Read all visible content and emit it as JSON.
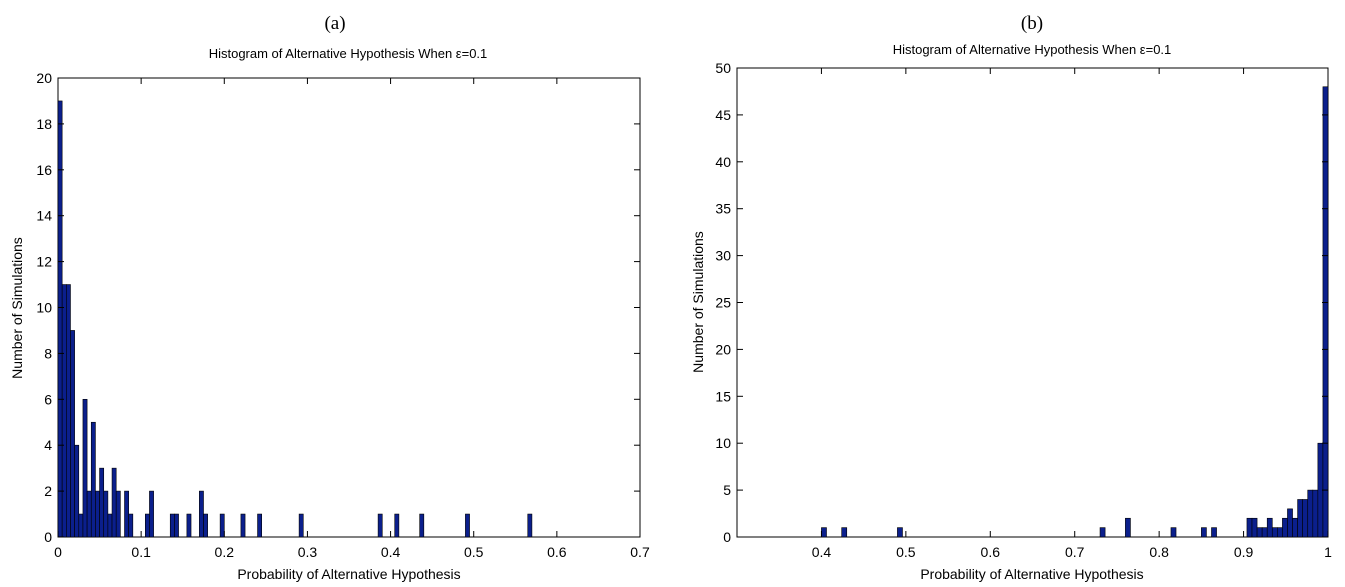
{
  "colors": {
    "bar": "#0b1f8c",
    "axis": "#000000",
    "background": "#ffffff"
  },
  "chart_data": [
    {
      "type": "bar",
      "panel_label": "(a)",
      "title": "Histogram of Alternative Hypothesis When ε=0.1",
      "xlabel": "Probability of Alternative Hypothesis",
      "ylabel": "Number of Simulations",
      "xlim": [
        0,
        0.7
      ],
      "ylim": [
        0,
        20
      ],
      "xticks": [
        "0",
        "0.1",
        "0.2",
        "0.3",
        "0.4",
        "0.5",
        "0.6",
        "0.7"
      ],
      "yticks": [
        "0",
        "2",
        "4",
        "6",
        "8",
        "10",
        "12",
        "14",
        "16",
        "18",
        "20"
      ],
      "bin_width": 0.005,
      "bins": [
        {
          "x": 0.0025,
          "value": 19
        },
        {
          "x": 0.0075,
          "value": 11
        },
        {
          "x": 0.0125,
          "value": 11
        },
        {
          "x": 0.0175,
          "value": 9
        },
        {
          "x": 0.0225,
          "value": 4
        },
        {
          "x": 0.0275,
          "value": 1
        },
        {
          "x": 0.0325,
          "value": 6
        },
        {
          "x": 0.0375,
          "value": 2
        },
        {
          "x": 0.0425,
          "value": 5
        },
        {
          "x": 0.0475,
          "value": 2
        },
        {
          "x": 0.0525,
          "value": 3
        },
        {
          "x": 0.0575,
          "value": 2
        },
        {
          "x": 0.0625,
          "value": 1
        },
        {
          "x": 0.0675,
          "value": 3
        },
        {
          "x": 0.0725,
          "value": 2
        },
        {
          "x": 0.0825,
          "value": 2
        },
        {
          "x": 0.0875,
          "value": 1
        },
        {
          "x": 0.1075,
          "value": 1
        },
        {
          "x": 0.1125,
          "value": 2
        },
        {
          "x": 0.1375,
          "value": 1
        },
        {
          "x": 0.1425,
          "value": 1
        },
        {
          "x": 0.1575,
          "value": 1
        },
        {
          "x": 0.1725,
          "value": 2
        },
        {
          "x": 0.1775,
          "value": 1
        },
        {
          "x": 0.1975,
          "value": 1
        },
        {
          "x": 0.2225,
          "value": 1
        },
        {
          "x": 0.2425,
          "value": 1
        },
        {
          "x": 0.2925,
          "value": 1
        },
        {
          "x": 0.3875,
          "value": 1
        },
        {
          "x": 0.4075,
          "value": 1
        },
        {
          "x": 0.4375,
          "value": 1
        },
        {
          "x": 0.4925,
          "value": 1
        },
        {
          "x": 0.5675,
          "value": 1
        }
      ]
    },
    {
      "type": "bar",
      "panel_label": "(b)",
      "title": "Histogram of Alternative Hypothesis When ε=0.1",
      "xlabel": "Probability of Alternative Hypothesis",
      "ylabel": "Number of Simulations",
      "xlim": [
        0.3,
        1.0
      ],
      "ylim": [
        0,
        50
      ],
      "xticks": [
        "0.4",
        "0.5",
        "0.6",
        "0.7",
        "0.8",
        "0.9",
        "1"
      ],
      "yticks": [
        "0",
        "5",
        "10",
        "15",
        "20",
        "25",
        "30",
        "35",
        "40",
        "45",
        "50"
      ],
      "bin_width": 0.006,
      "bins": [
        {
          "x": 0.403,
          "value": 1
        },
        {
          "x": 0.427,
          "value": 1
        },
        {
          "x": 0.493,
          "value": 1
        },
        {
          "x": 0.733,
          "value": 1
        },
        {
          "x": 0.763,
          "value": 2
        },
        {
          "x": 0.817,
          "value": 1
        },
        {
          "x": 0.853,
          "value": 1
        },
        {
          "x": 0.865,
          "value": 1
        },
        {
          "x": 0.907,
          "value": 2
        },
        {
          "x": 0.913,
          "value": 2
        },
        {
          "x": 0.919,
          "value": 1
        },
        {
          "x": 0.925,
          "value": 1
        },
        {
          "x": 0.931,
          "value": 2
        },
        {
          "x": 0.937,
          "value": 1
        },
        {
          "x": 0.943,
          "value": 1
        },
        {
          "x": 0.949,
          "value": 2
        },
        {
          "x": 0.955,
          "value": 3
        },
        {
          "x": 0.961,
          "value": 2
        },
        {
          "x": 0.967,
          "value": 4
        },
        {
          "x": 0.973,
          "value": 4
        },
        {
          "x": 0.979,
          "value": 5
        },
        {
          "x": 0.985,
          "value": 5
        },
        {
          "x": 0.991,
          "value": 10
        },
        {
          "x": 0.997,
          "value": 48
        }
      ]
    }
  ]
}
